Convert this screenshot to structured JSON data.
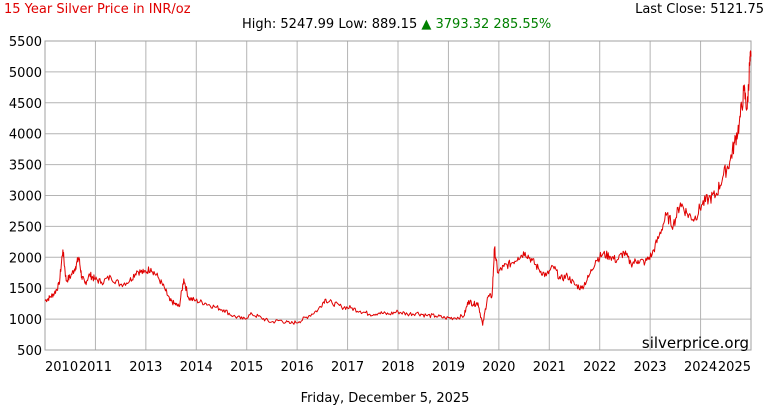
{
  "header": {
    "title": "15 Year Silver Price in INR/oz",
    "last_close_label": "Last Close:",
    "last_close_value": "5121.75",
    "high_label": "High:",
    "high_value": "5247.99",
    "low_label": "Low:",
    "low_value": "889.15",
    "change_arrow": "▲",
    "change_value": "3793.32",
    "change_percent": "285.55%"
  },
  "watermark": "silverprice.org",
  "footer_date": "Friday, December 5, 2025",
  "colors": {
    "line": "#e00000",
    "title": "#e00000",
    "change_up": "#008000",
    "grid": "#b4b4b4"
  },
  "chart_data": {
    "type": "line",
    "title": "15 Year Silver Price in INR/oz",
    "xlabel": "",
    "ylabel": "",
    "xlim": [
      2010,
      2025
    ],
    "ylim": [
      500,
      5500
    ],
    "x_ticks": [
      "2010",
      "2011",
      "2013",
      "2014",
      "2015",
      "2016",
      "2017",
      "2018",
      "2019",
      "2020",
      "2021",
      "2022",
      "2023",
      "2024",
      "2025"
    ],
    "y_ticks": [
      500,
      1000,
      1500,
      2000,
      2500,
      3000,
      3500,
      4000,
      4500,
      5000,
      5500
    ],
    "grid": true,
    "series": [
      {
        "points": [
          [
            2010.0,
            1300
          ],
          [
            2010.1,
            1350
          ],
          [
            2010.2,
            1420
          ],
          [
            2010.3,
            1560
          ],
          [
            2010.38,
            2120
          ],
          [
            2010.45,
            1620
          ],
          [
            2010.55,
            1700
          ],
          [
            2010.65,
            1850
          ],
          [
            2010.72,
            2000
          ],
          [
            2010.78,
            1680
          ],
          [
            2010.85,
            1580
          ],
          [
            2010.95,
            1720
          ],
          [
            2011.05,
            1650
          ],
          [
            2011.2,
            1600
          ],
          [
            2011.4,
            1680
          ],
          [
            2011.6,
            1560
          ],
          [
            2011.8,
            1620
          ],
          [
            2011.95,
            1780
          ],
          [
            2012.1,
            1750
          ],
          [
            2012.25,
            1820
          ],
          [
            2012.4,
            1680
          ],
          [
            2012.55,
            1480
          ],
          [
            2012.65,
            1300
          ],
          [
            2012.75,
            1250
          ],
          [
            2012.85,
            1200
          ],
          [
            2012.95,
            1650
          ],
          [
            2013.05,
            1340
          ],
          [
            2013.2,
            1300
          ],
          [
            2013.4,
            1260
          ],
          [
            2013.6,
            1200
          ],
          [
            2013.8,
            1150
          ],
          [
            2014.0,
            1050
          ],
          [
            2014.2,
            1000
          ],
          [
            2014.4,
            1080
          ],
          [
            2014.6,
            1020
          ],
          [
            2014.8,
            950
          ],
          [
            2015.0,
            980
          ],
          [
            2015.2,
            930
          ],
          [
            2015.4,
            960
          ],
          [
            2015.6,
            1050
          ],
          [
            2015.8,
            1150
          ],
          [
            2015.95,
            1320
          ],
          [
            2016.1,
            1260
          ],
          [
            2016.3,
            1200
          ],
          [
            2016.5,
            1180
          ],
          [
            2016.7,
            1130
          ],
          [
            2016.9,
            1080
          ],
          [
            2017.1,
            1100
          ],
          [
            2017.3,
            1080
          ],
          [
            2017.5,
            1120
          ],
          [
            2017.7,
            1080
          ],
          [
            2017.9,
            1100
          ],
          [
            2018.1,
            1060
          ],
          [
            2018.3,
            1050
          ],
          [
            2018.5,
            1020
          ],
          [
            2018.7,
            1020
          ],
          [
            2018.9,
            1050
          ],
          [
            2019.0,
            1300
          ],
          [
            2019.1,
            1240
          ],
          [
            2019.2,
            1260
          ],
          [
            2019.3,
            900
          ],
          [
            2019.4,
            1350
          ],
          [
            2019.5,
            1380
          ],
          [
            2019.55,
            2150
          ],
          [
            2019.62,
            1750
          ],
          [
            2019.75,
            1850
          ],
          [
            2019.9,
            1900
          ],
          [
            2020.05,
            2000
          ],
          [
            2020.2,
            2080
          ],
          [
            2020.35,
            1950
          ],
          [
            2020.5,
            1800
          ],
          [
            2020.65,
            1700
          ],
          [
            2020.8,
            1850
          ],
          [
            2020.95,
            1650
          ],
          [
            2021.1,
            1700
          ],
          [
            2021.25,
            1560
          ],
          [
            2021.4,
            1500
          ],
          [
            2021.55,
            1680
          ],
          [
            2021.7,
            1950
          ],
          [
            2021.85,
            2050
          ],
          [
            2022.0,
            2020
          ],
          [
            2022.15,
            1950
          ],
          [
            2022.3,
            2080
          ],
          [
            2022.45,
            1900
          ],
          [
            2022.6,
            1950
          ],
          [
            2022.75,
            1920
          ],
          [
            2022.9,
            2050
          ],
          [
            2023.05,
            2350
          ],
          [
            2023.2,
            2680
          ],
          [
            2023.35,
            2520
          ],
          [
            2023.5,
            2880
          ],
          [
            2023.65,
            2700
          ],
          [
            2023.8,
            2620
          ],
          [
            2023.95,
            2850
          ],
          [
            2024.1,
            2950
          ],
          [
            2024.25,
            3000
          ],
          [
            2024.4,
            3300
          ],
          [
            2024.55,
            3550
          ],
          [
            2024.65,
            3850
          ],
          [
            2024.75,
            4150
          ],
          [
            2024.85,
            4700
          ],
          [
            2024.92,
            4400
          ],
          [
            2024.97,
            5100
          ],
          [
            2025.0,
            5248
          ]
        ]
      }
    ]
  }
}
